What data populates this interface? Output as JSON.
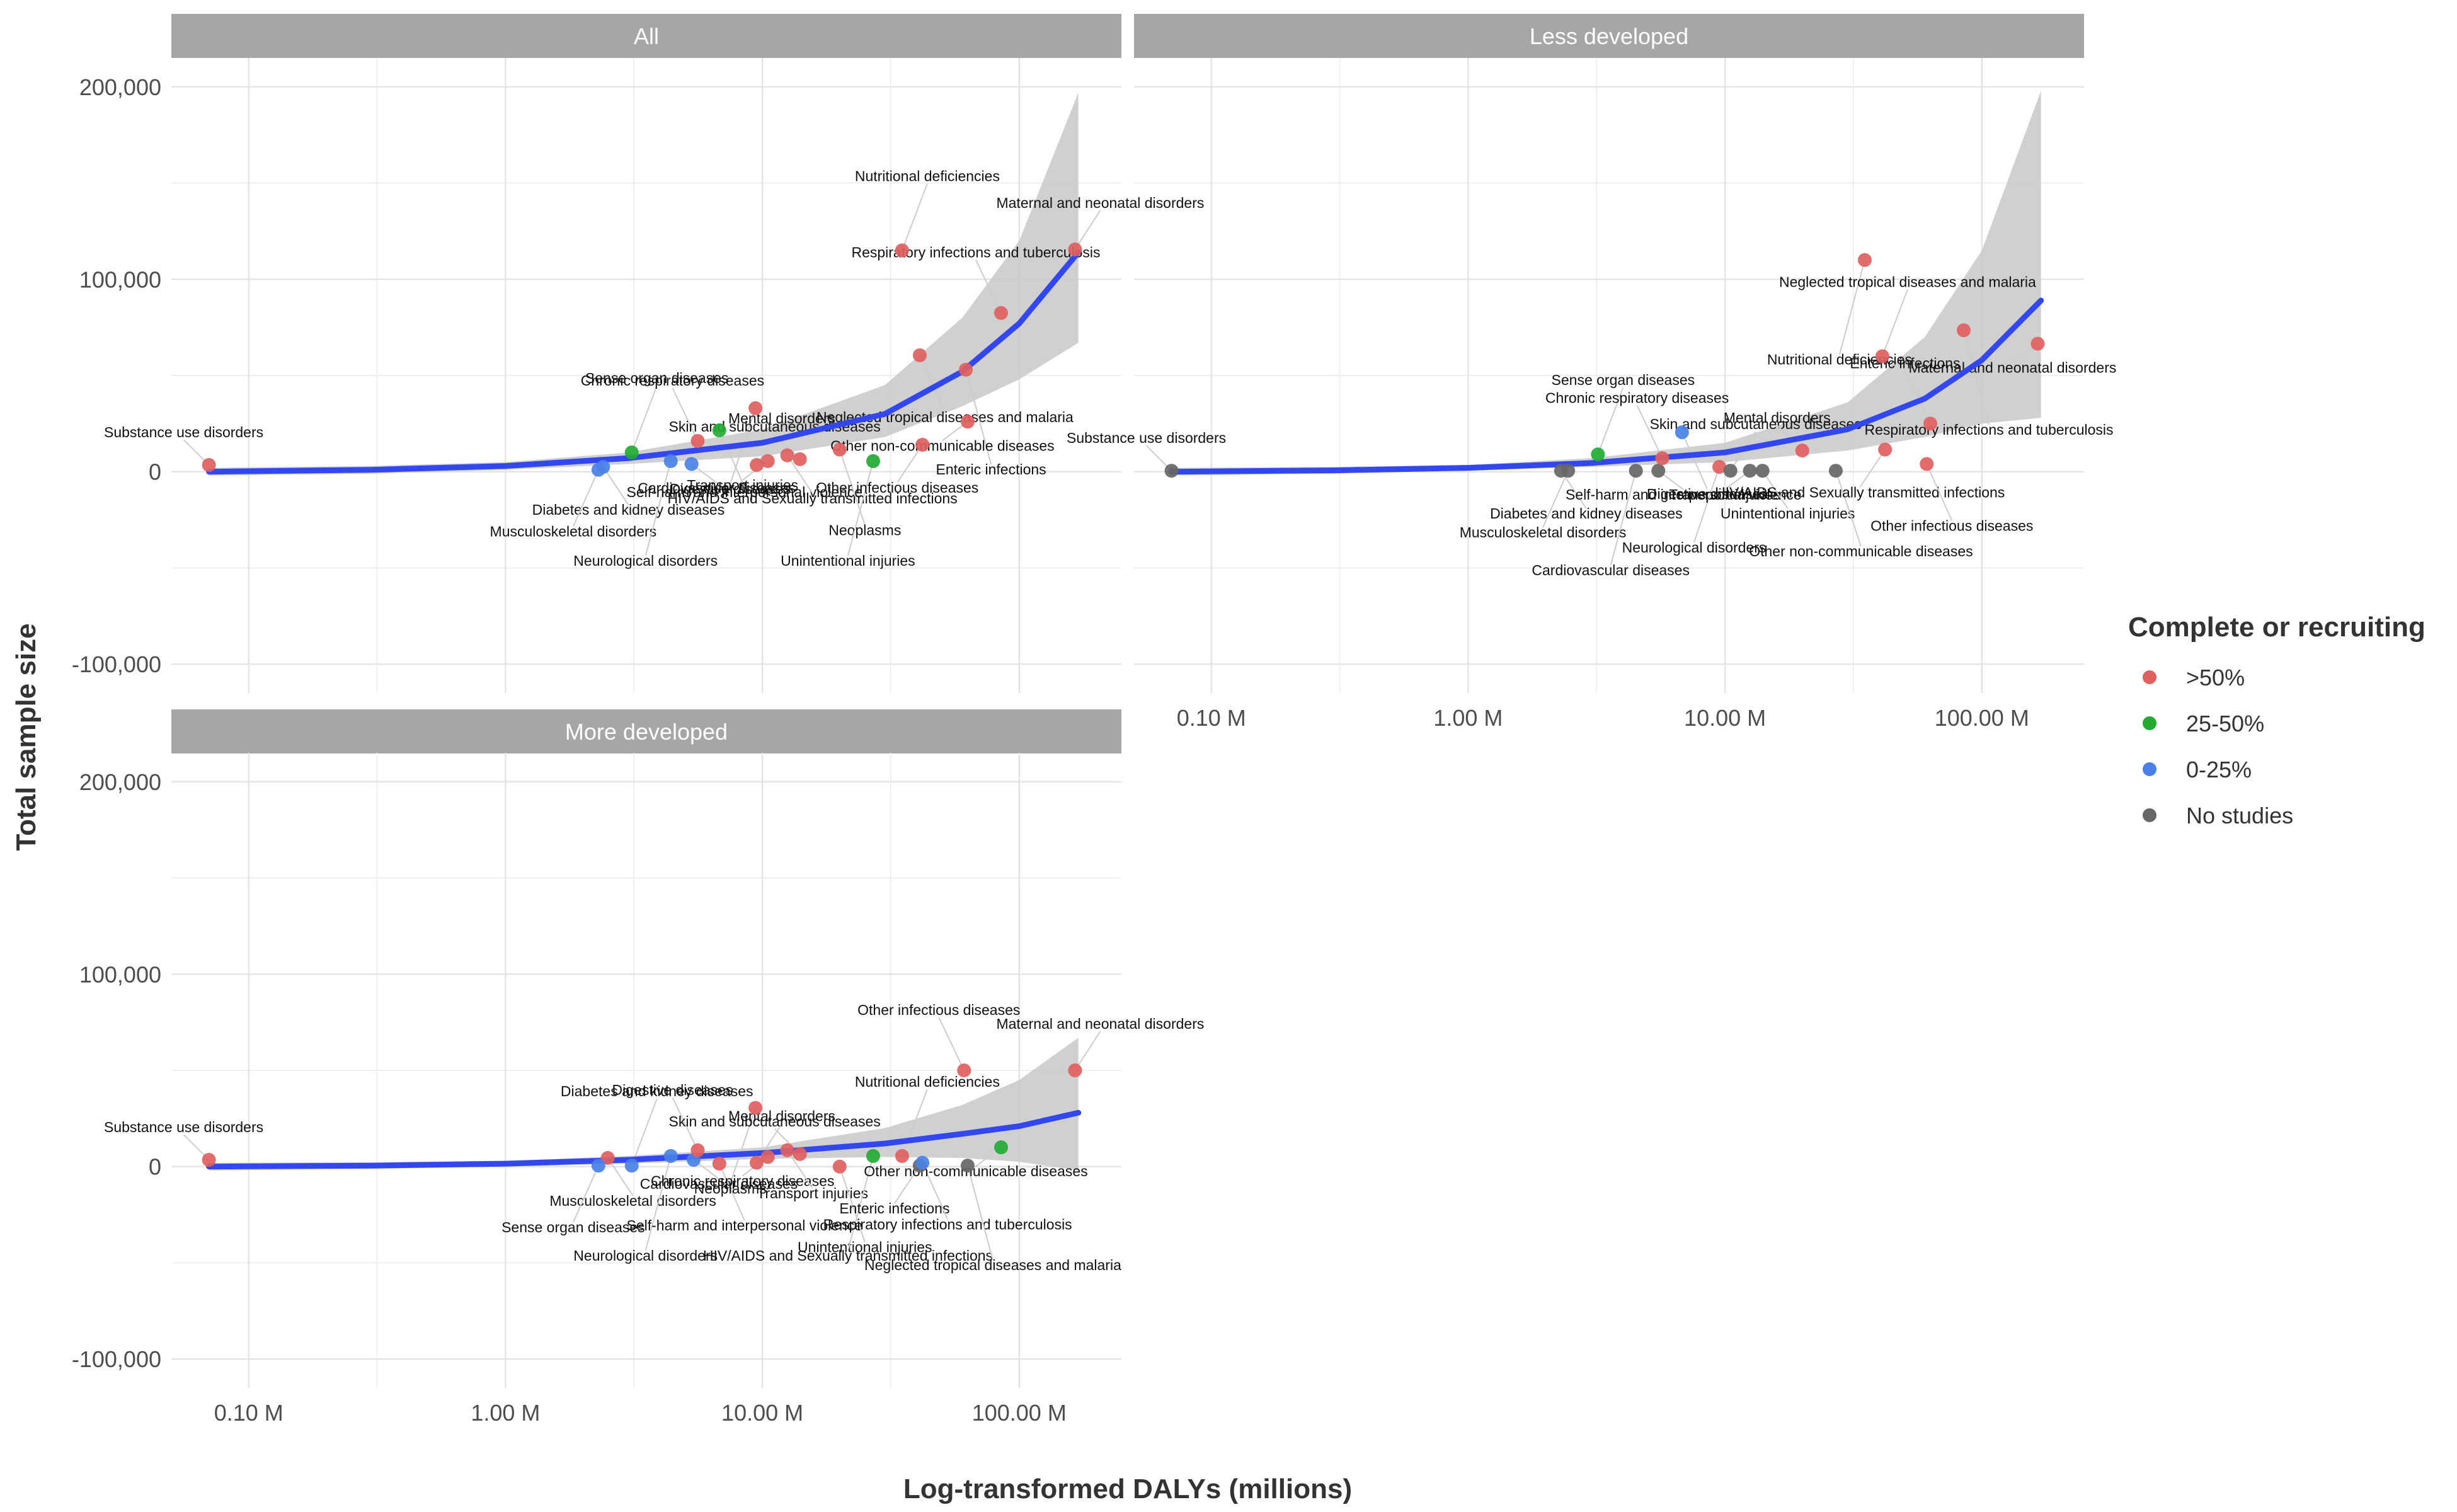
{
  "figure": {
    "xlabel": "Log-transformed DALYs (millions)",
    "ylabel": "Total sample size",
    "legend": {
      "title": "Complete or recruiting",
      "placement": "right",
      "items": [
        {
          "label": ">50%",
          "color": "#e06060"
        },
        {
          "label": "25-50%",
          "color": "#22aa33"
        },
        {
          "label": "0-25%",
          "color": "#4a80e6"
        },
        {
          "label": "No studies",
          "color": "#666666"
        }
      ]
    },
    "x_ticks": [
      {
        "value": 0.1,
        "label": "0.10 M"
      },
      {
        "value": 1,
        "label": "1.00 M"
      },
      {
        "value": 10,
        "label": "10.00 M"
      },
      {
        "value": 100,
        "label": "100.00 M"
      }
    ],
    "y_ticks": [
      {
        "value": -100000,
        "label": "-100,000"
      },
      {
        "value": 0,
        "label": "0"
      },
      {
        "value": 100000,
        "label": "100,000"
      },
      {
        "value": 200000,
        "label": "200,000"
      }
    ],
    "colors": {
      "strip": "#a6a6a6",
      "trend": "#3347f0",
      "ribbon": "#c8c8c8",
      "grid": "#e4e4e4",
      "label_line": "#cccccc"
    }
  },
  "chart_data": [
    {
      "type": "scatter",
      "panel": "All",
      "xscale": "log10",
      "xlim": [
        0.05,
        250
      ],
      "ylim": [
        -115000,
        215000
      ],
      "trend": {
        "x": [
          0.07,
          0.3,
          1,
          3,
          10,
          30,
          60,
          100,
          170
        ],
        "y": [
          0,
          1000,
          3000,
          7000,
          15000,
          30000,
          52000,
          77000,
          114000
        ],
        "upper": [
          2000,
          3000,
          5000,
          10000,
          22000,
          45000,
          80000,
          120000,
          197000
        ],
        "lower": [
          -2000,
          -1000,
          1000,
          4000,
          8000,
          18000,
          34000,
          48000,
          67000
        ]
      },
      "points": [
        {
          "label": "Substance use disorders",
          "x": 0.07,
          "y": 3500,
          "status": ">50%"
        },
        {
          "label": "Diabetes and kidney diseases",
          "x": 2.4,
          "y": 2500,
          "status": "0-25%"
        },
        {
          "label": "Musculoskeletal disorders",
          "x": 2.3,
          "y": 1000,
          "status": "0-25%"
        },
        {
          "label": "Sense organ diseases",
          "x": 3.1,
          "y": 10000,
          "status": "25-50%"
        },
        {
          "label": "Neurological disorders",
          "x": 4.4,
          "y": 5500,
          "status": "0-25%"
        },
        {
          "label": "Cardiovascular diseases",
          "x": 5.3,
          "y": 4000,
          "status": "0-25%"
        },
        {
          "label": "Chronic respiratory diseases",
          "x": 5.6,
          "y": 16000,
          "status": ">50%"
        },
        {
          "label": "Self-harm and interpersonal violence",
          "x": 6.8,
          "y": 21500,
          "status": "25-50%"
        },
        {
          "label": "Digestive diseases",
          "x": 9.4,
          "y": 33000,
          "status": ">50%"
        },
        {
          "label": "Mental disorders",
          "x": 9.5,
          "y": 3500,
          "status": ">50%"
        },
        {
          "label": "Transport injuries",
          "x": 10.5,
          "y": 5500,
          "status": ">50%"
        },
        {
          "label": "HIV/AIDS and Sexually transmitted infections",
          "x": 12.5,
          "y": 8500,
          "status": ">50%"
        },
        {
          "label": "Skin and subcutaneous diseases",
          "x": 14,
          "y": 6500,
          "status": ">50%"
        },
        {
          "label": "Neoplasms",
          "x": 20,
          "y": 11500,
          "status": ">50%"
        },
        {
          "label": "Unintentional injuries",
          "x": 27,
          "y": 5500,
          "status": "25-50%"
        },
        {
          "label": "Nutritional deficiencies",
          "x": 35,
          "y": 115000,
          "status": ">50%"
        },
        {
          "label": "Other infectious diseases",
          "x": 42,
          "y": 14000,
          "status": ">50%"
        },
        {
          "label": "Neglected tropical diseases and malaria",
          "x": 41,
          "y": 60500,
          "status": ">50%"
        },
        {
          "label": "Respiratory infections and tuberculosis",
          "x": 85,
          "y": 82500,
          "status": ">50%"
        },
        {
          "label": "Enteric infections",
          "x": 62,
          "y": 53000,
          "status": ">50%"
        },
        {
          "label": "Other non-communicable diseases",
          "x": 63,
          "y": 26000,
          "status": ">50%"
        },
        {
          "label": "Maternal and neonatal disorders",
          "x": 165,
          "y": 115500,
          "status": ">50%"
        }
      ]
    },
    {
      "type": "scatter",
      "panel": "Less developed",
      "xscale": "log10",
      "xlim": [
        0.05,
        250
      ],
      "ylim": [
        -115000,
        215000
      ],
      "trend": {
        "x": [
          0.07,
          0.3,
          1,
          3,
          10,
          30,
          60,
          100,
          170
        ],
        "y": [
          0,
          700,
          2000,
          4500,
          10000,
          22000,
          38000,
          58000,
          89000
        ],
        "upper": [
          2000,
          2500,
          3500,
          7000,
          15000,
          36000,
          70000,
          115000,
          198000
        ],
        "lower": [
          -2000,
          -1000,
          500,
          2500,
          5000,
          11000,
          18000,
          25000,
          28000
        ]
      },
      "points": [
        {
          "label": "Substance use disorders",
          "x": 0.07,
          "y": 500,
          "status": "No studies"
        },
        {
          "label": "Diabetes and kidney diseases",
          "x": 2.3,
          "y": 500,
          "status": "No studies"
        },
        {
          "label": "Musculoskeletal disorders",
          "x": 2.45,
          "y": 500,
          "status": "No studies"
        },
        {
          "label": "Sense organ diseases",
          "x": 3.2,
          "y": 9000,
          "status": "25-50%"
        },
        {
          "label": "Cardiovascular diseases",
          "x": 4.5,
          "y": 500,
          "status": "No studies"
        },
        {
          "label": "Self-harm and interpersonal violence",
          "x": 5.5,
          "y": 500,
          "status": "No studies"
        },
        {
          "label": "Chronic respiratory diseases",
          "x": 5.7,
          "y": 7000,
          "status": ">50%"
        },
        {
          "label": "Digestive diseases",
          "x": 6.8,
          "y": 20500,
          "status": "0-25%"
        },
        {
          "label": "Neurological disorders",
          "x": 9.5,
          "y": 2500,
          "status": ">50%"
        },
        {
          "label": "Skin and subcutaneous diseases",
          "x": 10.5,
          "y": 500,
          "status": "No studies"
        },
        {
          "label": "Transport injuries",
          "x": 12.5,
          "y": 500,
          "status": "No studies"
        },
        {
          "label": "Unintentional injuries",
          "x": 14,
          "y": 500,
          "status": "No studies"
        },
        {
          "label": "Mental disorders",
          "x": 20,
          "y": 11000,
          "status": ">50%"
        },
        {
          "label": "Other non-communicable diseases",
          "x": 27,
          "y": 500,
          "status": "No studies"
        },
        {
          "label": "Nutritional deficiencies",
          "x": 35,
          "y": 110000,
          "status": ">50%"
        },
        {
          "label": "Neglected tropical diseases and malaria",
          "x": 41,
          "y": 60000,
          "status": ">50%"
        },
        {
          "label": "HIV/AIDS and Sexually transmitted infections",
          "x": 42,
          "y": 11500,
          "status": ">50%"
        },
        {
          "label": "Other infectious diseases",
          "x": 61,
          "y": 4000,
          "status": ">50%"
        },
        {
          "label": "Enteric infections",
          "x": 63,
          "y": 25000,
          "status": ">50%"
        },
        {
          "label": "Respiratory infections and tuberculosis",
          "x": 85,
          "y": 73500,
          "status": ">50%"
        },
        {
          "label": "Maternal and neonatal disorders",
          "x": 165,
          "y": 66500,
          "status": ">50%"
        }
      ]
    },
    {
      "type": "scatter",
      "panel": "More developed",
      "xscale": "log10",
      "xlim": [
        0.05,
        250
      ],
      "ylim": [
        -115000,
        215000
      ],
      "trend": {
        "x": [
          0.07,
          0.3,
          1,
          3,
          10,
          30,
          60,
          100,
          170
        ],
        "y": [
          0,
          500,
          1500,
          3500,
          7000,
          12000,
          17000,
          21000,
          28000
        ],
        "upper": [
          2000,
          2200,
          3000,
          5500,
          10000,
          20000,
          32000,
          45000,
          67000
        ],
        "lower": [
          -2000,
          -1200,
          0,
          1500,
          4000,
          5000,
          4500,
          2500,
          -2000
        ]
      },
      "points": [
        {
          "label": "Substance use disorders",
          "x": 0.07,
          "y": 3500,
          "status": ">50%"
        },
        {
          "label": "Musculoskeletal disorders",
          "x": 2.5,
          "y": 4500,
          "status": ">50%"
        },
        {
          "label": "Sense organ diseases",
          "x": 2.3,
          "y": 500,
          "status": "0-25%"
        },
        {
          "label": "Diabetes and kidney diseases",
          "x": 3.1,
          "y": 500,
          "status": "0-25%"
        },
        {
          "label": "Neurological disorders",
          "x": 4.4,
          "y": 5500,
          "status": "0-25%"
        },
        {
          "label": "Cardiovascular diseases",
          "x": 5.4,
          "y": 3500,
          "status": "0-25%"
        },
        {
          "label": "Digestive diseases",
          "x": 5.6,
          "y": 8500,
          "status": ">50%"
        },
        {
          "label": "Self-harm and interpersonal violence",
          "x": 6.8,
          "y": 1500,
          "status": ">50%"
        },
        {
          "label": "Neoplasms",
          "x": 9.4,
          "y": 30500,
          "status": ">50%"
        },
        {
          "label": "Mental disorders",
          "x": 9.5,
          "y": 2000,
          "status": ">50%"
        },
        {
          "label": "Chronic respiratory diseases",
          "x": 10.5,
          "y": 5000,
          "status": ">50%"
        },
        {
          "label": "Transport injuries",
          "x": 12.5,
          "y": 8500,
          "status": ">50%"
        },
        {
          "label": "Skin and subcutaneous diseases",
          "x": 14,
          "y": 6500,
          "status": ">50%"
        },
        {
          "label": "Unintentional injuries",
          "x": 20,
          "y": 0,
          "status": ">50%"
        },
        {
          "label": "HIV/AIDS and Sexually transmitted infections",
          "x": 27,
          "y": 5500,
          "status": "25-50%"
        },
        {
          "label": "Nutritional deficiencies",
          "x": 35,
          "y": 5500,
          "status": ">50%"
        },
        {
          "label": "Enteric infections",
          "x": 41,
          "y": 500,
          "status": "No studies"
        },
        {
          "label": "Respiratory infections and tuberculosis",
          "x": 42,
          "y": 2000,
          "status": "0-25%"
        },
        {
          "label": "Other infectious diseases",
          "x": 61,
          "y": 50000,
          "status": ">50%"
        },
        {
          "label": "Neglected tropical diseases and malaria",
          "x": 63,
          "y": 500,
          "status": "No studies"
        },
        {
          "label": "Other non-communicable diseases",
          "x": 85,
          "y": 10000,
          "status": "25-50%"
        },
        {
          "label": "Maternal and neonatal disorders",
          "x": 165,
          "y": 50000,
          "status": ">50%"
        }
      ]
    }
  ]
}
